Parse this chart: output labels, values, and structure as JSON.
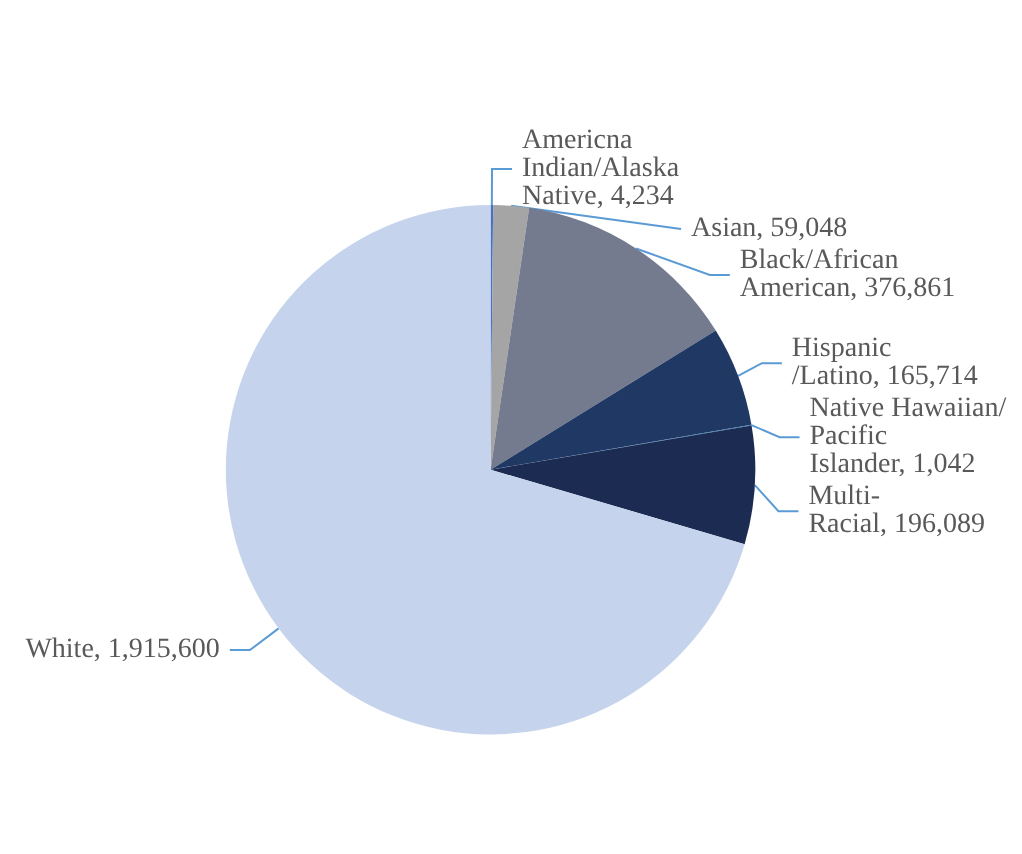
{
  "chart_data": {
    "type": "pie",
    "categories": [
      "Americna Indian/Alaska Native",
      "Asian",
      "Black/African American",
      "Hispanic /Latino",
      "Native Hawaiian/ Pacific Islander",
      "Multi- Racial",
      "White"
    ],
    "value_labels": [
      "4,234",
      "59,048",
      "376,861",
      "165,714",
      "1,042",
      "196,089",
      "1,915,600"
    ],
    "values": [
      4234,
      59048,
      376861,
      165714,
      1042,
      196089,
      1915600
    ],
    "colors": [
      "#4472c4",
      "#a5a5a5",
      "#757b8f",
      "#203864",
      "#2e75b6",
      "#1b2b52",
      "#c5d4ec"
    ],
    "legend": false
  }
}
